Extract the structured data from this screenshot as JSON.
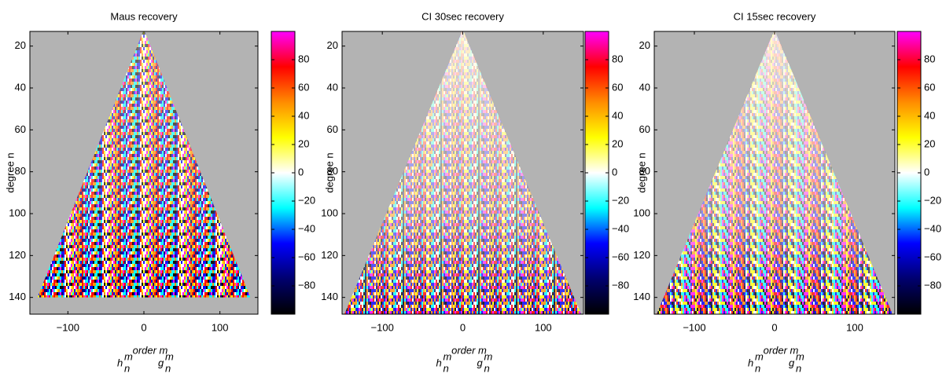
{
  "chart_data": [
    {
      "type": "heatmap",
      "title": "Maus recovery",
      "xlabel": "order m",
      "ylabel": "degree n",
      "terms": [
        {
          "base": "h",
          "sup": "m",
          "sub": "n"
        },
        {
          "base": "g",
          "sup": "m",
          "sub": "n"
        }
      ],
      "xlim": [
        -150,
        150
      ],
      "xticks": [
        {
          "value": -100,
          "label": "−100"
        },
        0,
        100
      ],
      "ylim": [
        13,
        148
      ],
      "yticks": [
        20,
        40,
        60,
        80,
        100,
        120,
        140
      ],
      "clim": [
        -100,
        100
      ],
      "cticks": [
        {
          "value": -80,
          "label": "−80"
        },
        {
          "value": -60,
          "label": "−60"
        },
        {
          "value": -40,
          "label": "−40"
        },
        {
          "value": -20,
          "label": "−20"
        },
        0,
        20,
        40,
        60,
        80
      ],
      "colormap": [
        "#000000",
        "#00006e",
        "#0000ff",
        "#00ffff",
        "#ffffff",
        "#ffff00",
        "#ff8c00",
        "#ff0000",
        "#ff00ff"
      ]
    },
    {
      "type": "heatmap",
      "title": "CI 30sec recovery",
      "xlabel": "order m",
      "ylabel": "degree n",
      "terms": [
        {
          "base": "h",
          "sup": "m",
          "sub": "n"
        },
        {
          "base": "g",
          "sup": "m",
          "sub": "n"
        }
      ],
      "xlim": [
        -150,
        150
      ],
      "xticks": [
        {
          "value": -100,
          "label": "−100"
        },
        0,
        100
      ],
      "ylim": [
        13,
        148
      ],
      "yticks": [
        20,
        40,
        60,
        80,
        100,
        120,
        140
      ],
      "clim": [
        -100,
        100
      ],
      "cticks": [
        {
          "value": -80,
          "label": "−80"
        },
        {
          "value": -60,
          "label": "−60"
        },
        {
          "value": -40,
          "label": "−40"
        },
        {
          "value": -20,
          "label": "−20"
        },
        0,
        20,
        40,
        60,
        80
      ],
      "colormap": [
        "#000000",
        "#00006e",
        "#0000ff",
        "#00ffff",
        "#ffffff",
        "#ffff00",
        "#ff8c00",
        "#ff0000",
        "#ff00ff"
      ]
    },
    {
      "type": "heatmap",
      "title": "CI 15sec recovery",
      "xlabel": "order m",
      "ylabel": "degree n",
      "terms": [
        {
          "base": "h",
          "sup": "m",
          "sub": "n"
        },
        {
          "base": "g",
          "sup": "m",
          "sub": "n"
        }
      ],
      "xlim": [
        -150,
        150
      ],
      "xticks": [
        {
          "value": -100,
          "label": "−100"
        },
        0,
        100
      ],
      "ylim": [
        13,
        148
      ],
      "yticks": [
        20,
        40,
        60,
        80,
        100,
        120,
        140
      ],
      "clim": [
        -100,
        100
      ],
      "cticks": [
        {
          "value": -80,
          "label": "−80"
        },
        {
          "value": -60,
          "label": "−60"
        },
        {
          "value": -40,
          "label": "−40"
        },
        {
          "value": -20,
          "label": "−20"
        },
        0,
        20,
        40,
        60,
        80
      ],
      "colormap": [
        "#000000",
        "#00006e",
        "#0000ff",
        "#00ffff",
        "#ffffff",
        "#ffff00",
        "#ff8c00",
        "#ff0000",
        "#ff00ff"
      ]
    }
  ]
}
